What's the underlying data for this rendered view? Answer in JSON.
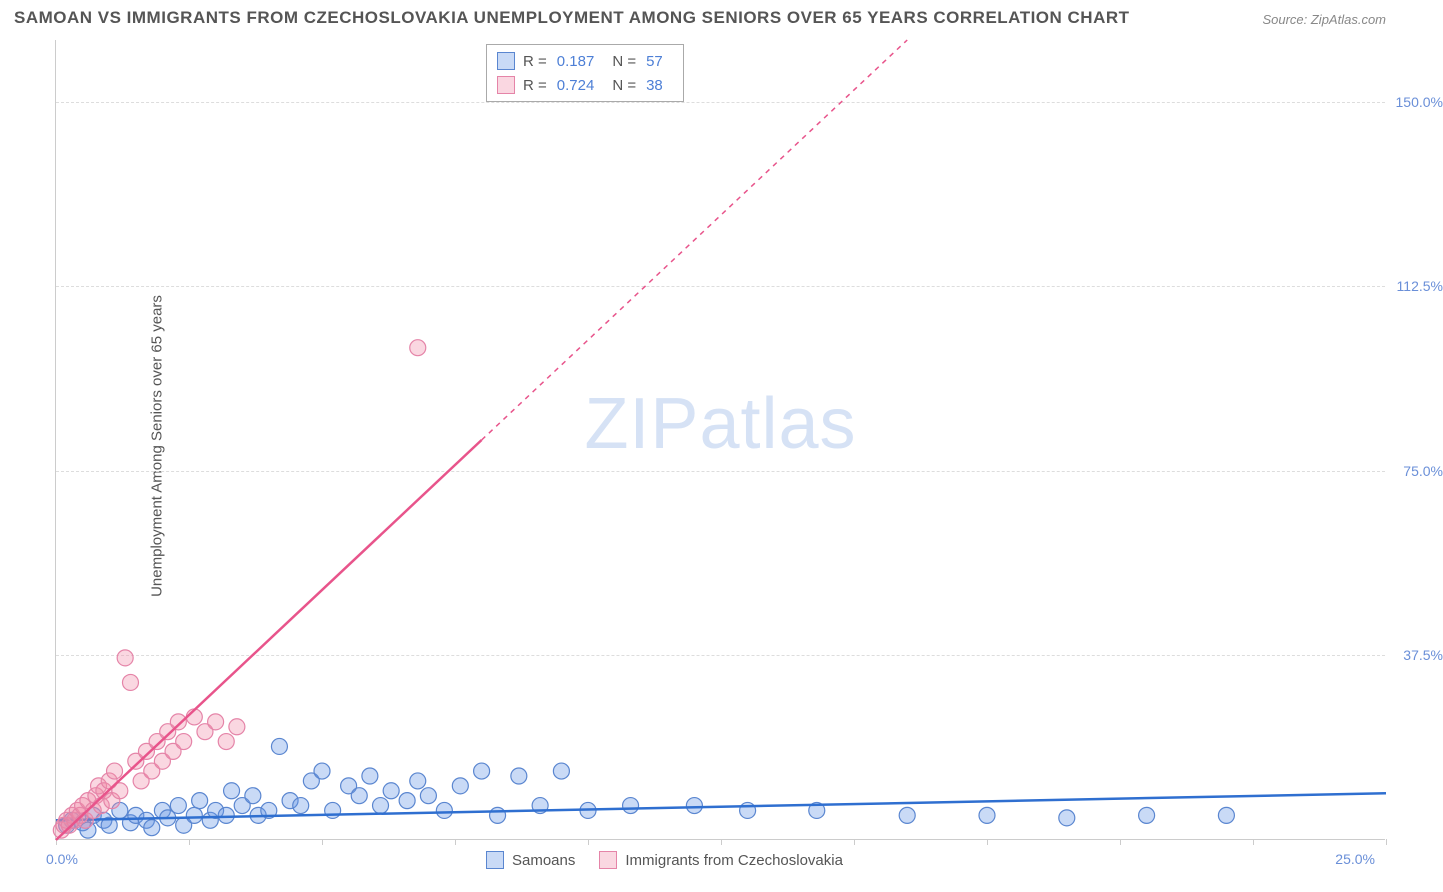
{
  "title": "SAMOAN VS IMMIGRANTS FROM CZECHOSLOVAKIA UNEMPLOYMENT AMONG SENIORS OVER 65 YEARS CORRELATION CHART",
  "source": "Source: ZipAtlas.com",
  "ylabel": "Unemployment Among Seniors over 65 years",
  "watermark_a": "ZIP",
  "watermark_b": "atlas",
  "chart": {
    "type": "scatter-with-regression",
    "background_color": "#ffffff",
    "grid_color": "#dddddd",
    "axis_color": "#cccccc",
    "tick_label_color": "#6a8fd8",
    "xlim": [
      0,
      25
    ],
    "ylim": [
      0,
      162.5
    ],
    "xticks": [
      0,
      2.5,
      5,
      7.5,
      10,
      12.5,
      15,
      17.5,
      20,
      22.5,
      25
    ],
    "xtick_labels_shown": {
      "0": "0.0%",
      "25": "25.0%"
    },
    "yticks": [
      37.5,
      75.0,
      112.5,
      150.0
    ],
    "ytick_labels": [
      "37.5%",
      "75.0%",
      "112.5%",
      "150.0%"
    ],
    "series": [
      {
        "key": "samoans",
        "label": "Samoans",
        "R": "0.187",
        "N": "57",
        "marker_fill": "rgba(100,150,230,0.35)",
        "marker_stroke": "#5a86d0",
        "marker_radius": 8,
        "line_color": "#2f6fd0",
        "line_width": 2.5,
        "trend": {
          "x1": 0,
          "y1": 4.0,
          "x2": 25,
          "y2": 9.5
        },
        "points": [
          [
            0.2,
            3
          ],
          [
            0.3,
            4
          ],
          [
            0.5,
            3.5
          ],
          [
            0.6,
            2
          ],
          [
            0.7,
            5
          ],
          [
            0.9,
            4
          ],
          [
            1.0,
            3
          ],
          [
            1.2,
            6
          ],
          [
            1.4,
            3.5
          ],
          [
            1.5,
            5
          ],
          [
            1.7,
            4
          ],
          [
            1.8,
            2.5
          ],
          [
            2.0,
            6
          ],
          [
            2.1,
            4.5
          ],
          [
            2.3,
            7
          ],
          [
            2.4,
            3
          ],
          [
            2.6,
            5
          ],
          [
            2.7,
            8
          ],
          [
            2.9,
            4
          ],
          [
            3.0,
            6
          ],
          [
            3.2,
            5
          ],
          [
            3.3,
            10
          ],
          [
            3.5,
            7
          ],
          [
            3.7,
            9
          ],
          [
            3.8,
            5
          ],
          [
            4.0,
            6
          ],
          [
            4.2,
            19
          ],
          [
            4.4,
            8
          ],
          [
            4.6,
            7
          ],
          [
            4.8,
            12
          ],
          [
            5.0,
            14
          ],
          [
            5.2,
            6
          ],
          [
            5.5,
            11
          ],
          [
            5.7,
            9
          ],
          [
            5.9,
            13
          ],
          [
            6.1,
            7
          ],
          [
            6.3,
            10
          ],
          [
            6.6,
            8
          ],
          [
            6.8,
            12
          ],
          [
            7.0,
            9
          ],
          [
            7.3,
            6
          ],
          [
            7.6,
            11
          ],
          [
            8.0,
            14
          ],
          [
            8.3,
            5
          ],
          [
            8.7,
            13
          ],
          [
            9.1,
            7
          ],
          [
            9.5,
            14
          ],
          [
            10.0,
            6
          ],
          [
            10.8,
            7
          ],
          [
            12.0,
            7
          ],
          [
            13.0,
            6
          ],
          [
            14.3,
            6
          ],
          [
            16.0,
            5
          ],
          [
            17.5,
            5
          ],
          [
            19.0,
            4.5
          ],
          [
            20.5,
            5
          ],
          [
            22.0,
            5
          ]
        ]
      },
      {
        "key": "czech",
        "label": "Immigrants from Czechoslovakia",
        "R": "0.724",
        "N": "38",
        "marker_fill": "rgba(240,140,170,0.35)",
        "marker_stroke": "#e584a8",
        "marker_radius": 8,
        "line_color": "#e8548b",
        "line_width": 2.5,
        "trend": {
          "x1": 0,
          "y1": 0,
          "x2": 16,
          "y2": 162.5
        },
        "solid_until_x": 8.0,
        "points": [
          [
            0.1,
            2
          ],
          [
            0.15,
            3
          ],
          [
            0.2,
            4
          ],
          [
            0.25,
            3
          ],
          [
            0.3,
            5
          ],
          [
            0.35,
            4
          ],
          [
            0.4,
            6
          ],
          [
            0.45,
            5
          ],
          [
            0.5,
            7
          ],
          [
            0.55,
            4
          ],
          [
            0.6,
            8
          ],
          [
            0.7,
            6
          ],
          [
            0.75,
            9
          ],
          [
            0.8,
            11
          ],
          [
            0.85,
            7
          ],
          [
            0.9,
            10
          ],
          [
            1.0,
            12
          ],
          [
            1.05,
            8
          ],
          [
            1.1,
            14
          ],
          [
            1.2,
            10
          ],
          [
            1.3,
            37
          ],
          [
            1.4,
            32
          ],
          [
            1.5,
            16
          ],
          [
            1.6,
            12
          ],
          [
            1.7,
            18
          ],
          [
            1.8,
            14
          ],
          [
            1.9,
            20
          ],
          [
            2.0,
            16
          ],
          [
            2.1,
            22
          ],
          [
            2.2,
            18
          ],
          [
            2.3,
            24
          ],
          [
            2.4,
            20
          ],
          [
            2.6,
            25
          ],
          [
            2.8,
            22
          ],
          [
            3.0,
            24
          ],
          [
            3.2,
            20
          ],
          [
            3.4,
            23
          ],
          [
            6.8,
            100
          ]
        ]
      }
    ]
  },
  "legend_bottom": [
    {
      "swatch_fill": "rgba(100,150,230,0.35)",
      "swatch_stroke": "#5a86d0",
      "label": "Samoans"
    },
    {
      "swatch_fill": "rgba(240,140,170,0.35)",
      "swatch_stroke": "#e584a8",
      "label": "Immigrants from Czechoslovakia"
    }
  ],
  "stat_legend_labels": {
    "R": "R =",
    "N": "N ="
  }
}
